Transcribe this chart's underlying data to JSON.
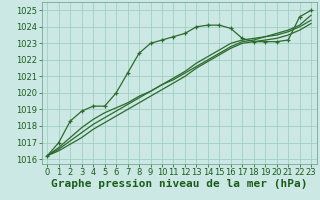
{
  "xlabel": "Graphe pression niveau de la mer (hPa)",
  "bg_color": "#cce8e4",
  "grid_color": "#99ccbb",
  "line_color": "#2d6a2d",
  "xlim": [
    -0.5,
    23.5
  ],
  "ylim": [
    1015.7,
    1025.5
  ],
  "xticks": [
    0,
    1,
    2,
    3,
    4,
    5,
    6,
    7,
    8,
    9,
    10,
    11,
    12,
    13,
    14,
    15,
    16,
    17,
    18,
    19,
    20,
    21,
    22,
    23
  ],
  "yticks": [
    1016,
    1017,
    1018,
    1019,
    1020,
    1021,
    1022,
    1023,
    1024,
    1025
  ],
  "series": [
    {
      "x": [
        0,
        1,
        2,
        3,
        4,
        5,
        6,
        7,
        8,
        9,
        10,
        11,
        12,
        13,
        14,
        15,
        16,
        17,
        18,
        19,
        20,
        21,
        22,
        23
      ],
      "y": [
        1016.2,
        1017.0,
        1018.3,
        1018.9,
        1019.2,
        1019.2,
        1020.0,
        1021.2,
        1022.4,
        1023.0,
        1023.2,
        1023.4,
        1023.6,
        1024.0,
        1024.1,
        1024.1,
        1023.9,
        1023.3,
        1023.1,
        1023.1,
        1023.1,
        1023.2,
        1024.6,
        1025.0
      ],
      "marker": "+",
      "lw": 0.9
    },
    {
      "x": [
        0,
        1,
        2,
        3,
        4,
        5,
        6,
        7,
        8,
        9,
        10,
        11,
        12,
        13,
        14,
        15,
        16,
        17,
        18,
        19,
        20,
        21,
        22,
        23
      ],
      "y": [
        1016.2,
        1016.5,
        1016.9,
        1017.3,
        1017.8,
        1018.2,
        1018.6,
        1019.0,
        1019.4,
        1019.8,
        1020.2,
        1020.6,
        1021.0,
        1021.5,
        1021.9,
        1022.3,
        1022.7,
        1023.0,
        1023.1,
        1023.2,
        1023.3,
        1023.5,
        1023.8,
        1024.2
      ],
      "marker": null,
      "lw": 0.9
    },
    {
      "x": [
        0,
        1,
        2,
        3,
        4,
        5,
        6,
        7,
        8,
        9,
        10,
        11,
        12,
        13,
        14,
        15,
        16,
        17,
        18,
        19,
        20,
        21,
        22,
        23
      ],
      "y": [
        1016.2,
        1016.6,
        1017.1,
        1017.6,
        1018.1,
        1018.5,
        1018.9,
        1019.3,
        1019.7,
        1020.1,
        1020.5,
        1020.9,
        1021.3,
        1021.8,
        1022.2,
        1022.6,
        1023.0,
        1023.2,
        1023.3,
        1023.4,
        1023.6,
        1023.8,
        1024.1,
        1024.7
      ],
      "marker": null,
      "lw": 0.9
    },
    {
      "x": [
        0,
        1,
        2,
        3,
        4,
        5,
        6,
        7,
        8,
        9,
        10,
        11,
        12,
        13,
        14,
        15,
        16,
        17,
        18,
        19,
        20,
        21,
        22,
        23
      ],
      "y": [
        1016.2,
        1016.7,
        1017.3,
        1017.9,
        1018.4,
        1018.8,
        1019.1,
        1019.4,
        1019.8,
        1020.1,
        1020.5,
        1020.8,
        1021.2,
        1021.6,
        1022.0,
        1022.4,
        1022.8,
        1023.1,
        1023.2,
        1023.4,
        1023.5,
        1023.7,
        1024.0,
        1024.4
      ],
      "marker": null,
      "lw": 0.9
    }
  ],
  "xlabel_fontsize": 8,
  "tick_fontsize": 6,
  "label_color": "#1a5c1a",
  "spine_color": "#669988"
}
